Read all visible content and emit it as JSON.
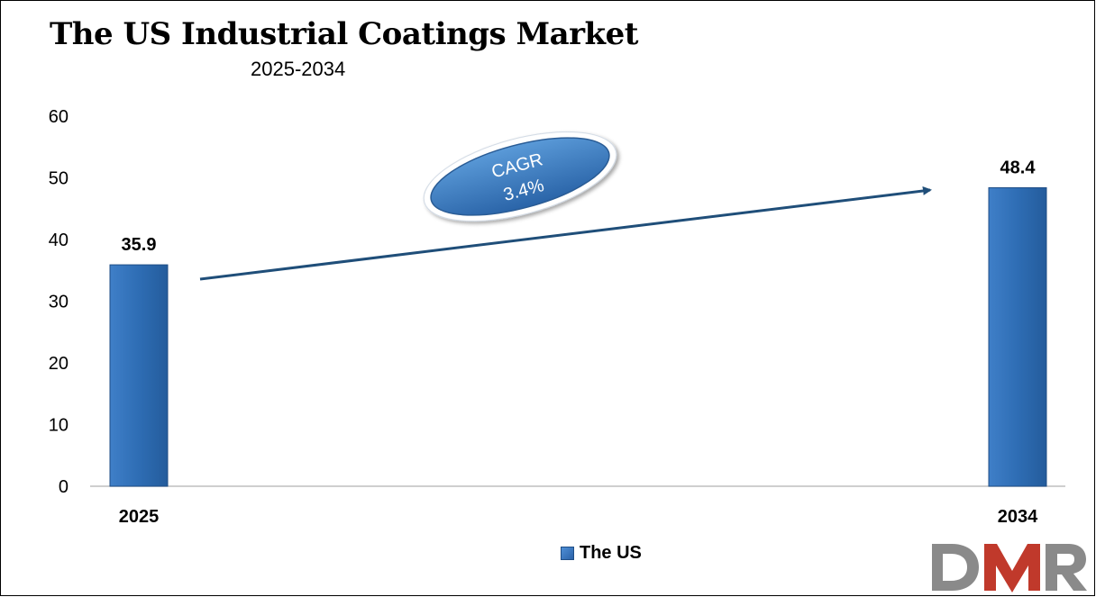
{
  "chart_data": {
    "type": "bar",
    "title": "The US Industrial Coatings Market",
    "subtitle": "2025-2034",
    "categories": [
      "2025",
      "2034"
    ],
    "series": [
      {
        "name": "The US",
        "values": [
          35.9,
          48.4
        ],
        "color": "#2e6db4"
      }
    ],
    "data_labels": [
      "35.9",
      "48.4"
    ],
    "ylim": [
      0,
      60
    ],
    "yticks": [
      "0",
      "10",
      "20",
      "30",
      "40",
      "50",
      "60"
    ],
    "grid": false,
    "legend_position": "bottom",
    "annotation": {
      "line1": "CAGR",
      "line2": "3.4%"
    }
  },
  "logo": {
    "text": "DMR",
    "colors": {
      "d": "#8a8a8a",
      "m": "#c0392b",
      "r": "#8a8a8a"
    }
  }
}
